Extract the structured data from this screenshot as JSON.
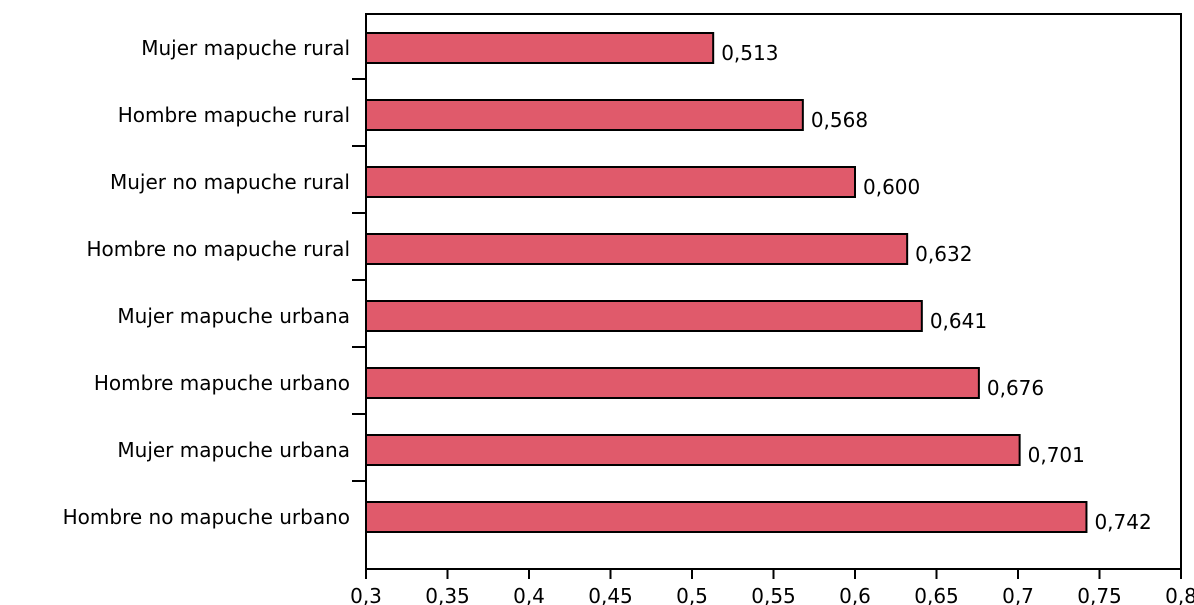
{
  "chart_data": {
    "type": "bar",
    "orientation": "horizontal",
    "categories": [
      "Mujer mapuche rural",
      "Hombre mapuche rural",
      "Mujer no mapuche rural",
      "Hombre no mapuche rural",
      "Mujer mapuche urbana",
      "Hombre mapuche urbano",
      "Mujer mapuche urbana",
      "Hombre no mapuche urbano"
    ],
    "values": [
      0.513,
      0.568,
      0.6,
      0.632,
      0.641,
      0.676,
      0.701,
      0.742
    ],
    "value_labels": [
      "0,513",
      "0,568",
      "0,600",
      "0,632",
      "0,641",
      "0,676",
      "0,701",
      "0,742"
    ],
    "xlim": [
      0.3,
      0.8
    ],
    "x_ticks": [
      0.3,
      0.35,
      0.4,
      0.45,
      0.5,
      0.55,
      0.6,
      0.65,
      0.7,
      0.75,
      0.8
    ],
    "x_tick_labels": [
      "0,3",
      "0,35",
      "0,4",
      "0,45",
      "0,5",
      "0,55",
      "0,6",
      "0,65",
      "0,7",
      "0,75",
      "0,8"
    ],
    "title": "",
    "xlabel": "",
    "ylabel": "",
    "grid": false,
    "legend": "none",
    "colors": {
      "bar_fill": "#e05a6b",
      "bar_stroke": "#000000",
      "axis": "#000000",
      "text": "#000000"
    }
  }
}
